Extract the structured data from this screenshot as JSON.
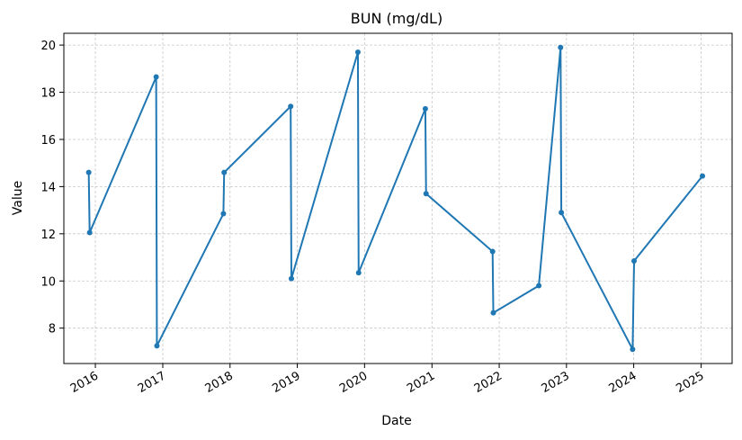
{
  "chart_data": {
    "type": "line",
    "title": "BUN (mg/dL)",
    "xlabel": "Date",
    "ylabel": "Value",
    "color": "#1f77b4",
    "grid": true,
    "ylim": [
      6.5,
      20.5
    ],
    "xlim": [
      "2015-07-14",
      "2025-06-18"
    ],
    "yticks": [
      8,
      10,
      12,
      14,
      16,
      18,
      20
    ],
    "xticks": [
      {
        "date": "2016-01-01",
        "label": "2016"
      },
      {
        "date": "2017-01-01",
        "label": "2017"
      },
      {
        "date": "2018-01-01",
        "label": "2018"
      },
      {
        "date": "2019-01-01",
        "label": "2019"
      },
      {
        "date": "2020-01-01",
        "label": "2020"
      },
      {
        "date": "2021-01-01",
        "label": "2021"
      },
      {
        "date": "2022-01-01",
        "label": "2022"
      },
      {
        "date": "2023-01-01",
        "label": "2023"
      },
      {
        "date": "2024-01-01",
        "label": "2024"
      },
      {
        "date": "2025-01-01",
        "label": "2025"
      }
    ],
    "series": [
      {
        "x": [
          "2015-11-26",
          "2015-12-01",
          "2016-11-26",
          "2016-11-30",
          "2017-11-26",
          "2017-11-30",
          "2018-11-26",
          "2018-11-30",
          "2019-11-26",
          "2019-11-30",
          "2020-11-26",
          "2020-11-30",
          "2021-11-26",
          "2021-11-30",
          "2022-08-04",
          "2022-11-30",
          "2022-12-04",
          "2023-12-26",
          "2024-01-03",
          "2025-01-08"
        ],
        "y": [
          14.6,
          12.05,
          18.65,
          7.25,
          12.85,
          14.6,
          17.4,
          10.1,
          19.7,
          10.35,
          17.3,
          13.7,
          11.25,
          8.65,
          9.8,
          19.9,
          12.9,
          7.1,
          10.85,
          14.45
        ]
      }
    ]
  }
}
